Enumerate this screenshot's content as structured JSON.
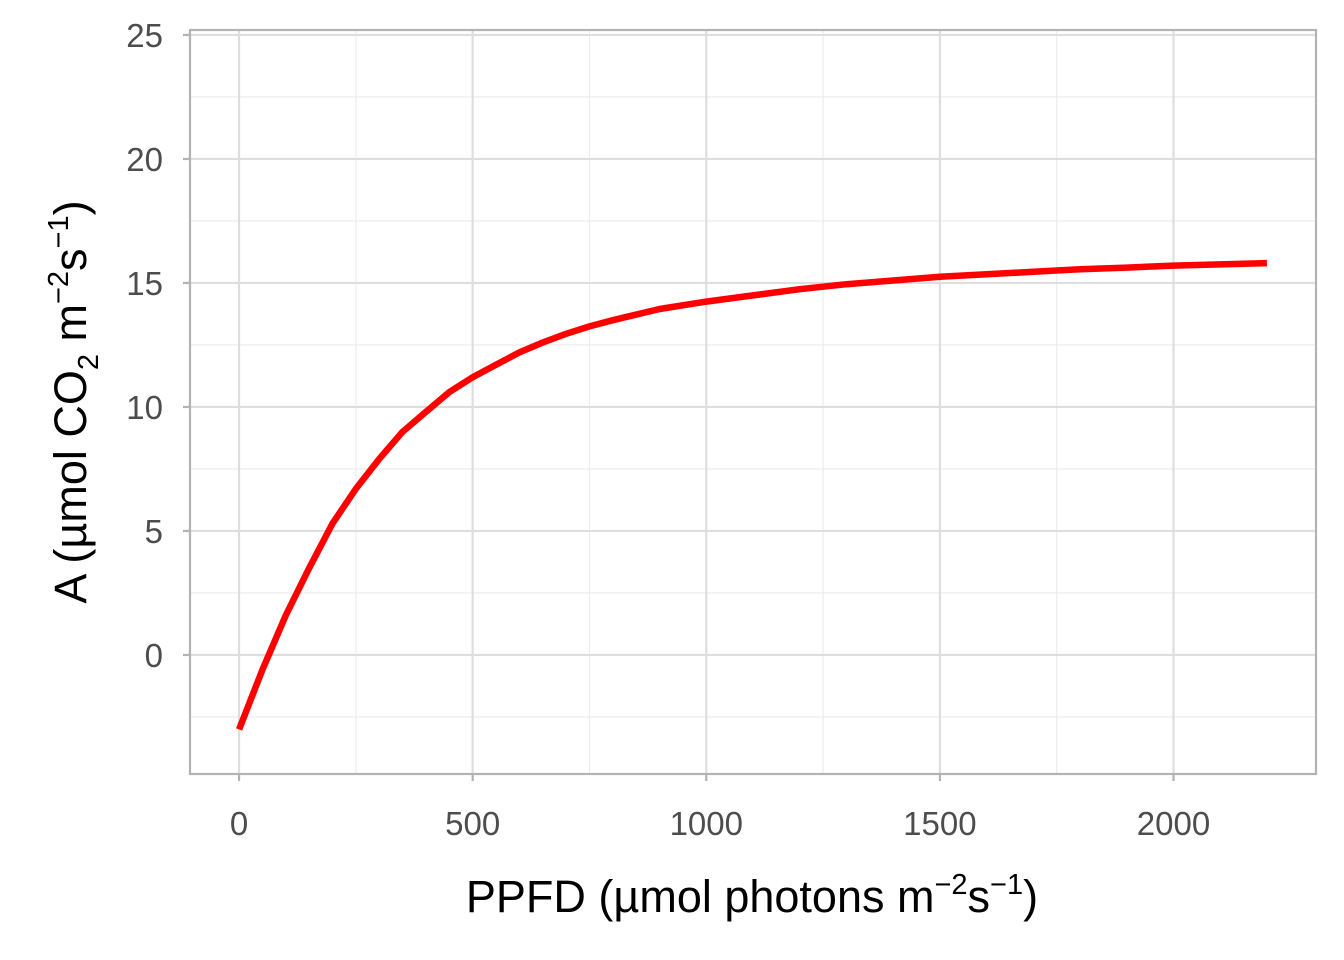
{
  "chart_data": {
    "type": "line",
    "title": "",
    "xlabel": {
      "prefix": "PPFD (",
      "mu": "µ",
      "main": "mol photons m",
      "exp1": "−2",
      "unit2": "s",
      "exp2": "−1",
      "suffix": ")"
    },
    "ylabel": {
      "prefix": "A (",
      "mu": "µ",
      "main": "mol CO",
      "sub": "2",
      "unit1": " m",
      "exp1": "−2",
      "unit2": "s",
      "exp2": "−1",
      "suffix": ")"
    },
    "xlim": [
      -105,
      2305
    ],
    "ylim": [
      -4.8,
      25.2
    ],
    "xticks": [
      0,
      500,
      1000,
      1500,
      2000
    ],
    "xtick_labels": [
      "0",
      "500",
      "1000",
      "1500",
      "2000"
    ],
    "xminor": [
      250,
      750,
      1250,
      1750
    ],
    "yticks": [
      0,
      5,
      10,
      15,
      20,
      25
    ],
    "ytick_labels": [
      "0",
      "5",
      "10",
      "15",
      "20",
      "25"
    ],
    "yminor": [
      -2.5,
      2.5,
      7.5,
      12.5,
      17.5,
      22.5
    ],
    "grid": true,
    "series": [
      {
        "color": "#ff0000",
        "x": [
          0,
          50,
          100,
          150,
          200,
          250,
          300,
          350,
          400,
          450,
          500,
          550,
          600,
          650,
          700,
          750,
          800,
          900,
          1000,
          1100,
          1200,
          1300,
          1400,
          1500,
          1600,
          1700,
          1800,
          1900,
          2000,
          2100,
          2200
        ],
        "y": [
          -3.0,
          -0.6,
          1.6,
          3.5,
          5.3,
          6.7,
          7.9,
          9.0,
          9.8,
          10.6,
          11.2,
          11.7,
          12.2,
          12.6,
          12.95,
          13.25,
          13.5,
          13.95,
          14.25,
          14.5,
          14.75,
          14.95,
          15.1,
          15.25,
          15.35,
          15.45,
          15.55,
          15.62,
          15.7,
          15.75,
          15.8
        ]
      }
    ]
  }
}
